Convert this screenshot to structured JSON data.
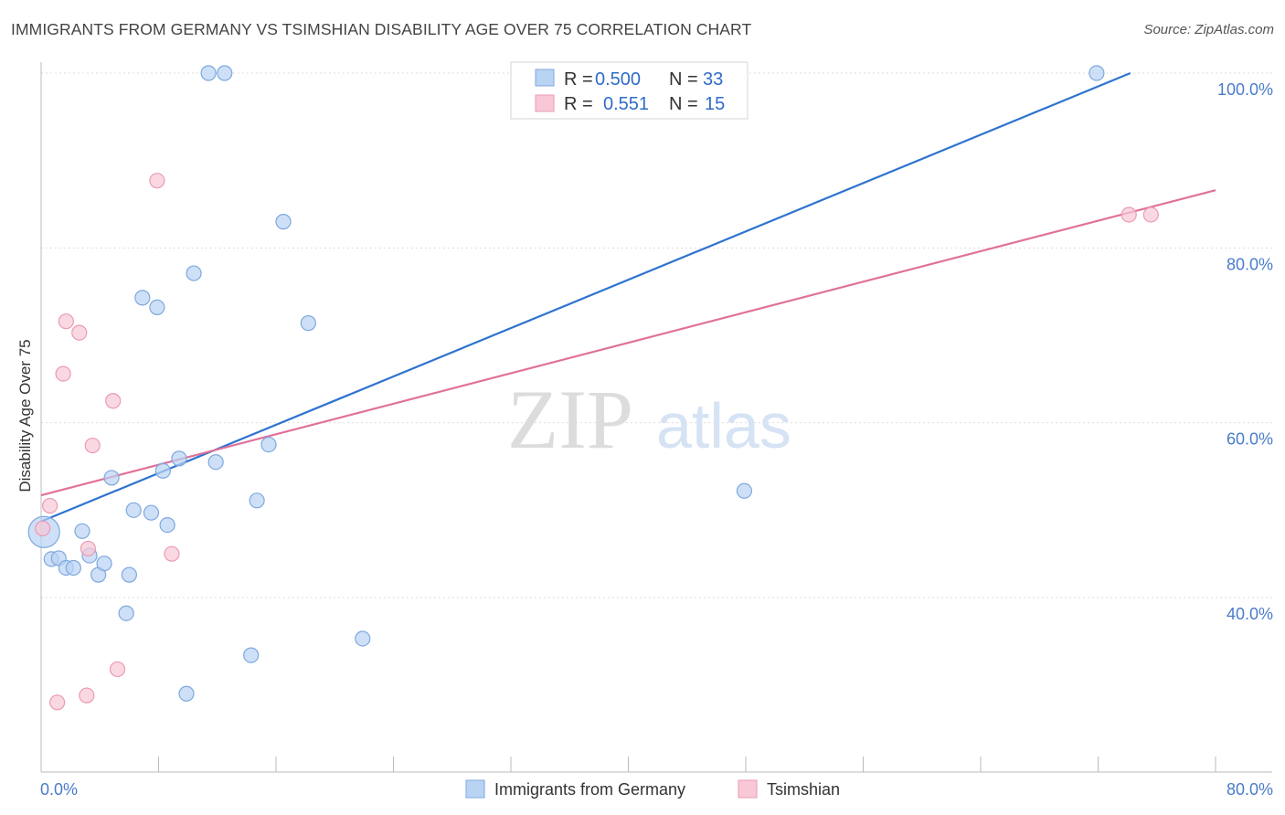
{
  "title": "IMMIGRANTS FROM GERMANY VS TSIMSHIAN DISABILITY AGE OVER 75 CORRELATION CHART",
  "source": "Source: ZipAtlas.com",
  "watermark": {
    "zip": "ZIP",
    "atlas": "atlas"
  },
  "colors": {
    "blue_fill": "#b9d3f3",
    "blue_stroke": "#7ea8dd",
    "blue_line": "#2e73cf",
    "pink_fill": "#f8c8d6",
    "pink_stroke": "#eb9ab2",
    "pink_line": "#e0719a",
    "grid": "#dddddd",
    "tick_text": "#4a7cc9"
  },
  "legend_top": {
    "rows": [
      {
        "r_label": "R =",
        "r_value": "0.500",
        "n_label": "N =",
        "n_value": "33"
      },
      {
        "r_label": "R =",
        "r_value": "0.551",
        "n_label": "N =",
        "n_value": "15"
      }
    ]
  },
  "chart_data": {
    "type": "scatter",
    "xlabel": "",
    "ylabel": "Disability Age Over 75",
    "xlim": [
      0,
      80
    ],
    "ylim": [
      22,
      102
    ],
    "x_tick_labels": [
      {
        "value": 0,
        "label": "0.0%"
      },
      {
        "value": 80,
        "label": "80.0%"
      }
    ],
    "y_tick_labels": [
      {
        "value": 40,
        "label": "40.0%"
      },
      {
        "value": 60,
        "label": "60.0%"
      },
      {
        "value": 80,
        "label": "80.0%"
      },
      {
        "value": 100,
        "label": "100.0%"
      }
    ],
    "legend_position": "bottom",
    "series": [
      {
        "name": "Immigrants from Germany",
        "r": 0.5,
        "n": 33,
        "trend": [
          [
            0,
            48.7
          ],
          [
            74.2,
            100
          ]
        ],
        "points": [
          [
            0.2,
            47.5,
            "large"
          ],
          [
            0.7,
            44.4
          ],
          [
            1.2,
            44.5
          ],
          [
            1.7,
            43.4
          ],
          [
            2.2,
            43.4
          ],
          [
            2.8,
            47.6
          ],
          [
            3.3,
            44.8
          ],
          [
            3.9,
            42.6
          ],
          [
            4.3,
            43.9
          ],
          [
            4.8,
            53.7
          ],
          [
            5.8,
            38.2
          ],
          [
            6.0,
            42.6
          ],
          [
            6.3,
            50.0
          ],
          [
            6.9,
            74.3
          ],
          [
            7.5,
            49.7
          ],
          [
            7.9,
            73.2
          ],
          [
            8.3,
            54.5
          ],
          [
            8.6,
            48.3
          ],
          [
            9.4,
            55.9
          ],
          [
            9.9,
            29.0
          ],
          [
            10.4,
            77.1
          ],
          [
            11.4,
            100.0
          ],
          [
            11.9,
            55.5
          ],
          [
            12.5,
            100.0
          ],
          [
            14.3,
            33.4
          ],
          [
            14.7,
            51.1
          ],
          [
            15.5,
            57.5
          ],
          [
            16.5,
            83.0
          ],
          [
            18.2,
            71.4
          ],
          [
            21.9,
            35.3
          ],
          [
            47.9,
            52.2
          ],
          [
            71.9,
            100.0
          ]
        ]
      },
      {
        "name": "Tsimshian",
        "r": 0.551,
        "n": 15,
        "trend": [
          [
            0,
            51.7
          ],
          [
            80,
            86.6
          ]
        ],
        "points": [
          [
            0.1,
            47.9
          ],
          [
            0.6,
            50.5
          ],
          [
            1.1,
            28.0
          ],
          [
            1.5,
            65.6
          ],
          [
            1.7,
            71.6
          ],
          [
            2.6,
            70.3
          ],
          [
            3.1,
            28.8
          ],
          [
            3.2,
            45.6
          ],
          [
            3.5,
            57.4
          ],
          [
            4.9,
            62.5
          ],
          [
            5.2,
            31.8
          ],
          [
            7.9,
            87.7
          ],
          [
            8.9,
            45.0
          ],
          [
            74.1,
            83.8
          ],
          [
            75.6,
            83.8
          ]
        ]
      }
    ]
  }
}
